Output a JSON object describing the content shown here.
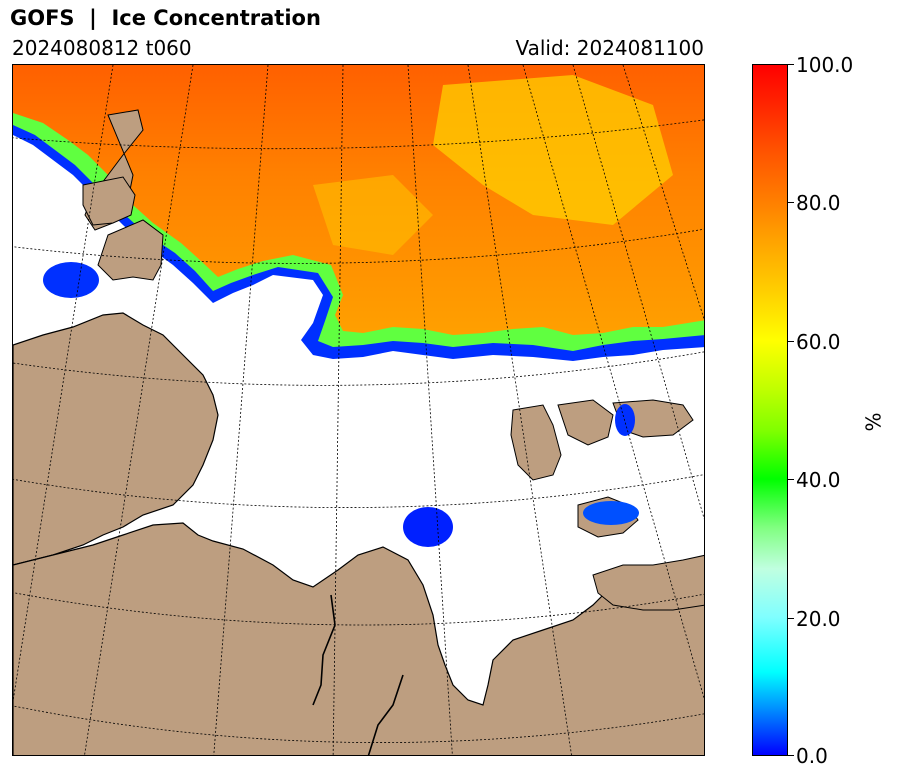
{
  "header": {
    "title": "GOFS  |  Ice Concentration",
    "run": "2024080812 t060",
    "valid": "Valid: 2024081100"
  },
  "colorbar": {
    "unit": "%",
    "ticks": [
      "100.0",
      "80.0",
      "60.0",
      "40.0",
      "20.0",
      "0.0"
    ],
    "min": 0,
    "max": 100
  },
  "colors": {
    "land": "#bd9e80",
    "ocean": "#ffffff",
    "coastline": "#000000"
  }
}
